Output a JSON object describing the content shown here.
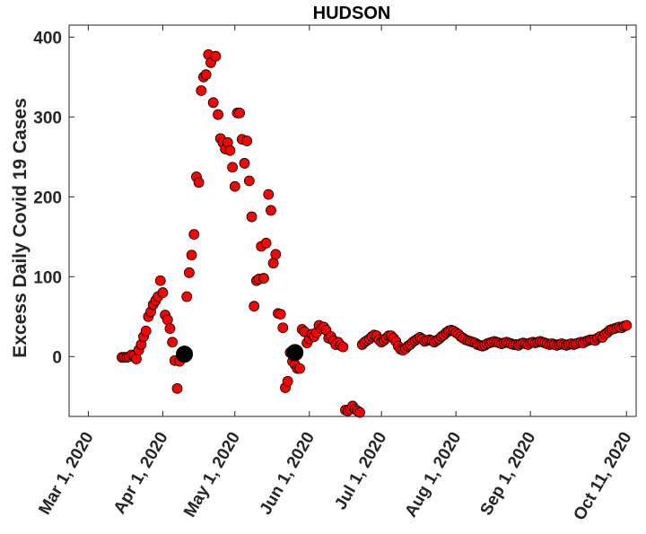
{
  "chart_data": {
    "type": "scatter",
    "title": "HUDSON",
    "xlabel": "",
    "ylabel": "Excess Daily Covid 19 Cases",
    "xlim": [
      "2020-02-22",
      "2020-10-15"
    ],
    "ylim": [
      -75,
      415
    ],
    "yticks": [
      0,
      100,
      200,
      300,
      400
    ],
    "xticks": [
      {
        "date": "2020-03-01",
        "label": "Mar 1, 2020"
      },
      {
        "date": "2020-04-01",
        "label": "Apr 1, 2020"
      },
      {
        "date": "2020-05-01",
        "label": "May 1, 2020"
      },
      {
        "date": "2020-06-01",
        "label": "Jun 1, 2020"
      },
      {
        "date": "2020-07-01",
        "label": "Jul 1, 2020"
      },
      {
        "date": "2020-08-01",
        "label": "Aug 1, 2020"
      },
      {
        "date": "2020-09-01",
        "label": "Sep 1, 2020"
      },
      {
        "date": "2020-10-11",
        "label": "Oct 11, 2020"
      }
    ],
    "grid": false,
    "series": [
      {
        "color": "#ff0000",
        "points": [
          [
            "2020-03-15",
            -1
          ],
          [
            "2020-03-16",
            -1
          ],
          [
            "2020-03-17",
            -1
          ],
          [
            "2020-03-18",
            0
          ],
          [
            "2020-03-19",
            2
          ],
          [
            "2020-03-20",
            1
          ],
          [
            "2020-03-21",
            -3
          ],
          [
            "2020-03-22",
            8
          ],
          [
            "2020-03-23",
            15
          ],
          [
            "2020-03-24",
            25
          ],
          [
            "2020-03-25",
            32
          ],
          [
            "2020-03-26",
            50
          ],
          [
            "2020-03-27",
            56
          ],
          [
            "2020-03-28",
            65
          ],
          [
            "2020-03-29",
            70
          ],
          [
            "2020-03-30",
            75
          ],
          [
            "2020-03-31",
            95
          ],
          [
            "2020-04-01",
            80
          ],
          [
            "2020-04-02",
            52
          ],
          [
            "2020-04-03",
            46
          ],
          [
            "2020-04-04",
            35
          ],
          [
            "2020-04-05",
            18
          ],
          [
            "2020-04-06",
            -5
          ],
          [
            "2020-04-07",
            -40
          ],
          [
            "2020-04-08",
            -6
          ],
          [
            "2020-04-09",
            2
          ],
          [
            "2020-04-10",
            1
          ],
          [
            "2020-04-11",
            75
          ],
          [
            "2020-04-12",
            105
          ],
          [
            "2020-04-13",
            127
          ],
          [
            "2020-04-14",
            153
          ],
          [
            "2020-04-15",
            225
          ],
          [
            "2020-04-16",
            218
          ],
          [
            "2020-04-17",
            333
          ],
          [
            "2020-04-18",
            350
          ],
          [
            "2020-04-19",
            353
          ],
          [
            "2020-04-20",
            378
          ],
          [
            "2020-04-21",
            368
          ],
          [
            "2020-04-22",
            318
          ],
          [
            "2020-04-23",
            376
          ],
          [
            "2020-04-24",
            303
          ],
          [
            "2020-04-25",
            273
          ],
          [
            "2020-04-26",
            268
          ],
          [
            "2020-04-27",
            260
          ],
          [
            "2020-04-28",
            268
          ],
          [
            "2020-04-29",
            258
          ],
          [
            "2020-04-30",
            237
          ],
          [
            "2020-05-01",
            213
          ],
          [
            "2020-05-02",
            305
          ],
          [
            "2020-05-03",
            305
          ],
          [
            "2020-05-04",
            272
          ],
          [
            "2020-05-05",
            242
          ],
          [
            "2020-05-06",
            270
          ],
          [
            "2020-05-07",
            220
          ],
          [
            "2020-05-08",
            175
          ],
          [
            "2020-05-09",
            63
          ],
          [
            "2020-05-10",
            95
          ],
          [
            "2020-05-11",
            97
          ],
          [
            "2020-05-12",
            138
          ],
          [
            "2020-05-13",
            98
          ],
          [
            "2020-05-14",
            142
          ],
          [
            "2020-05-15",
            203
          ],
          [
            "2020-05-16",
            183
          ],
          [
            "2020-05-17",
            117
          ],
          [
            "2020-05-18",
            128
          ],
          [
            "2020-05-19",
            54
          ],
          [
            "2020-05-20",
            53
          ],
          [
            "2020-05-21",
            36
          ],
          [
            "2020-05-22",
            -39
          ],
          [
            "2020-05-23",
            -31
          ],
          [
            "2020-05-24",
            5
          ],
          [
            "2020-05-25",
            -6
          ],
          [
            "2020-05-26",
            -10
          ],
          [
            "2020-05-27",
            -15
          ],
          [
            "2020-05-28",
            -15
          ],
          [
            "2020-05-29",
            34
          ],
          [
            "2020-05-30",
            31
          ],
          [
            "2020-05-31",
            17
          ],
          [
            "2020-06-01",
            22
          ],
          [
            "2020-06-02",
            28
          ],
          [
            "2020-06-03",
            25
          ],
          [
            "2020-06-04",
            30
          ],
          [
            "2020-06-05",
            39
          ],
          [
            "2020-06-06",
            35
          ],
          [
            "2020-06-07",
            37
          ],
          [
            "2020-06-08",
            33
          ],
          [
            "2020-06-09",
            23
          ],
          [
            "2020-06-10",
            25
          ],
          [
            "2020-06-11",
            20
          ],
          [
            "2020-06-12",
            15
          ],
          [
            "2020-06-13",
            18
          ],
          [
            "2020-06-14",
            14
          ],
          [
            "2020-06-15",
            12
          ],
          [
            "2020-06-16",
            -67
          ],
          [
            "2020-06-17",
            -68
          ],
          [
            "2020-06-18",
            -66
          ],
          [
            "2020-06-19",
            -62
          ],
          [
            "2020-06-20",
            -66
          ],
          [
            "2020-06-21",
            -68
          ],
          [
            "2020-06-22",
            -70
          ],
          [
            "2020-06-23",
            15
          ],
          [
            "2020-06-24",
            18
          ],
          [
            "2020-06-25",
            20
          ],
          [
            "2020-06-26",
            22
          ],
          [
            "2020-06-27",
            25
          ],
          [
            "2020-06-28",
            27
          ],
          [
            "2020-06-29",
            26
          ],
          [
            "2020-06-30",
            21
          ],
          [
            "2020-07-01",
            18
          ],
          [
            "2020-07-02",
            20
          ],
          [
            "2020-07-03",
            23
          ],
          [
            "2020-07-04",
            26
          ],
          [
            "2020-07-05",
            26
          ],
          [
            "2020-07-06",
            23
          ],
          [
            "2020-07-07",
            19
          ],
          [
            "2020-07-08",
            13
          ],
          [
            "2020-07-09",
            9
          ],
          [
            "2020-07-10",
            8
          ],
          [
            "2020-07-11",
            10
          ],
          [
            "2020-07-12",
            13
          ],
          [
            "2020-07-13",
            15
          ],
          [
            "2020-07-14",
            18
          ],
          [
            "2020-07-15",
            20
          ],
          [
            "2020-07-16",
            22
          ],
          [
            "2020-07-17",
            24
          ],
          [
            "2020-07-18",
            22
          ],
          [
            "2020-07-19",
            19
          ],
          [
            "2020-07-20",
            20
          ],
          [
            "2020-07-21",
            21
          ],
          [
            "2020-07-22",
            20
          ],
          [
            "2020-07-23",
            18
          ],
          [
            "2020-07-24",
            20
          ],
          [
            "2020-07-25",
            22
          ],
          [
            "2020-07-26",
            25
          ],
          [
            "2020-07-27",
            27
          ],
          [
            "2020-07-28",
            30
          ],
          [
            "2020-07-29",
            32
          ],
          [
            "2020-07-30",
            33
          ],
          [
            "2020-07-31",
            32
          ],
          [
            "2020-08-01",
            30
          ],
          [
            "2020-08-02",
            28
          ],
          [
            "2020-08-03",
            25
          ],
          [
            "2020-08-04",
            23
          ],
          [
            "2020-08-05",
            21
          ],
          [
            "2020-08-06",
            20
          ],
          [
            "2020-08-07",
            19
          ],
          [
            "2020-08-08",
            18
          ],
          [
            "2020-08-09",
            17
          ],
          [
            "2020-08-10",
            15
          ],
          [
            "2020-08-11",
            14
          ],
          [
            "2020-08-12",
            13
          ],
          [
            "2020-08-13",
            14
          ],
          [
            "2020-08-14",
            16
          ],
          [
            "2020-08-15",
            17
          ],
          [
            "2020-08-16",
            18
          ],
          [
            "2020-08-17",
            19
          ],
          [
            "2020-08-18",
            18
          ],
          [
            "2020-08-19",
            17
          ],
          [
            "2020-08-20",
            16
          ],
          [
            "2020-08-21",
            17
          ],
          [
            "2020-08-22",
            18
          ],
          [
            "2020-08-23",
            17
          ],
          [
            "2020-08-24",
            16
          ],
          [
            "2020-08-25",
            15
          ],
          [
            "2020-08-26",
            15
          ],
          [
            "2020-08-27",
            14
          ],
          [
            "2020-08-28",
            16
          ],
          [
            "2020-08-29",
            17
          ],
          [
            "2020-08-30",
            16
          ],
          [
            "2020-08-31",
            15
          ],
          [
            "2020-09-01",
            17
          ],
          [
            "2020-09-02",
            18
          ],
          [
            "2020-09-03",
            17
          ],
          [
            "2020-09-04",
            18
          ],
          [
            "2020-09-05",
            19
          ],
          [
            "2020-09-06",
            18
          ],
          [
            "2020-09-07",
            17
          ],
          [
            "2020-09-08",
            16
          ],
          [
            "2020-09-09",
            15
          ],
          [
            "2020-09-10",
            16
          ],
          [
            "2020-09-11",
            15
          ],
          [
            "2020-09-12",
            14
          ],
          [
            "2020-09-13",
            15
          ],
          [
            "2020-09-14",
            16
          ],
          [
            "2020-09-15",
            15
          ],
          [
            "2020-09-16",
            14
          ],
          [
            "2020-09-17",
            15
          ],
          [
            "2020-09-18",
            16
          ],
          [
            "2020-09-19",
            15
          ],
          [
            "2020-09-20",
            16
          ],
          [
            "2020-09-21",
            17
          ],
          [
            "2020-09-22",
            18
          ],
          [
            "2020-09-23",
            17
          ],
          [
            "2020-09-24",
            19
          ],
          [
            "2020-09-25",
            20
          ],
          [
            "2020-09-26",
            21
          ],
          [
            "2020-09-27",
            21
          ],
          [
            "2020-09-28",
            20
          ],
          [
            "2020-09-29",
            23
          ],
          [
            "2020-09-30",
            25
          ],
          [
            "2020-10-01",
            24
          ],
          [
            "2020-10-02",
            28
          ],
          [
            "2020-10-03",
            30
          ],
          [
            "2020-10-04",
            33
          ],
          [
            "2020-10-05",
            34
          ],
          [
            "2020-10-06",
            35
          ],
          [
            "2020-10-07",
            36
          ],
          [
            "2020-10-08",
            37
          ],
          [
            "2020-10-09",
            36
          ],
          [
            "2020-10-10",
            38
          ],
          [
            "2020-10-11",
            39
          ]
        ]
      },
      {
        "color": "#000000",
        "points": [
          [
            "2020-04-10",
            3
          ],
          [
            "2020-05-26",
            5
          ]
        ]
      }
    ]
  }
}
